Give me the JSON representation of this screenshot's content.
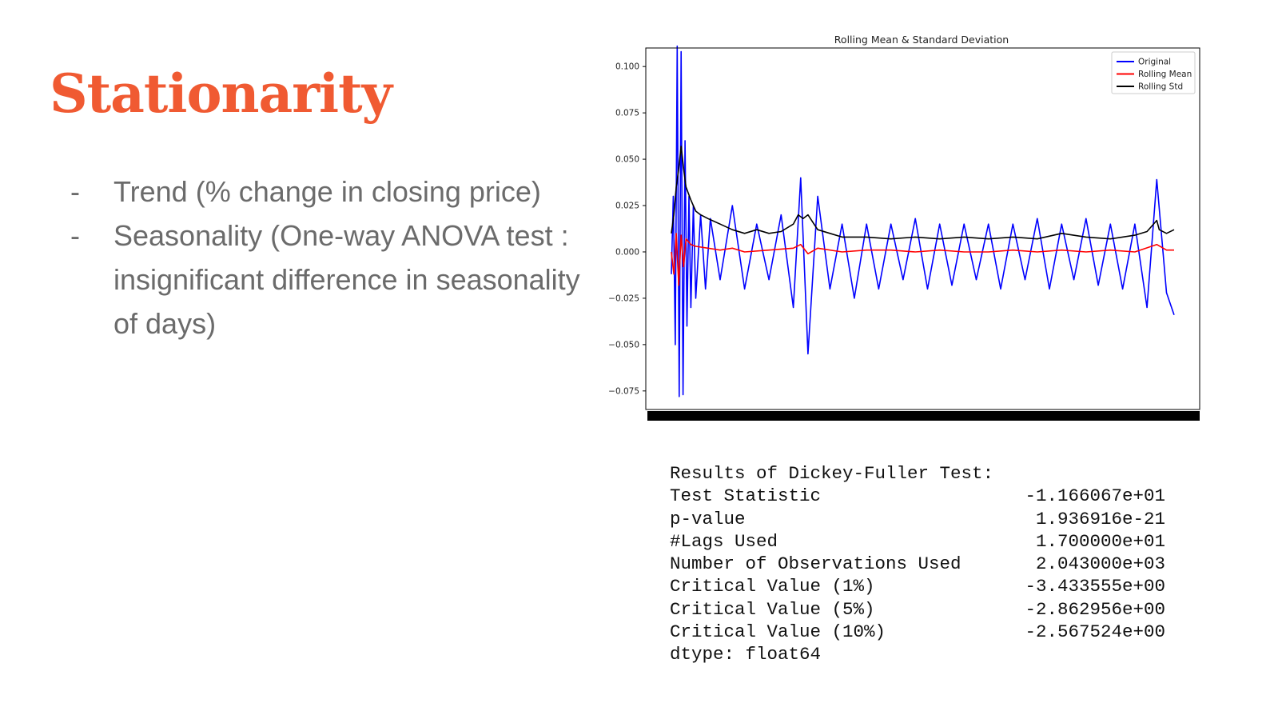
{
  "slide": {
    "title": "Stationarity",
    "bullet_marker": "-",
    "bullets": [
      "Trend (% change in closing price)",
      "Seasonality (One-way ANOVA test : insignificant difference in seasonality of days)"
    ]
  },
  "colors": {
    "title": "#f05a32",
    "bullet_text": "#6b6b6b",
    "original": "#0000ff",
    "rolling_mean": "#ff0000",
    "rolling_std": "#000000"
  },
  "chart_data": {
    "type": "line",
    "title": "Rolling Mean & Standard Deviation",
    "xlabel": "",
    "ylabel": "",
    "ylim": [
      -0.085,
      0.11
    ],
    "yticks": [
      -0.075,
      -0.05,
      -0.025,
      0.0,
      0.025,
      0.05,
      0.075,
      0.1
    ],
    "ytick_labels": [
      "−0.075",
      "−0.050",
      "−0.025",
      "0.000",
      "0.025",
      "0.050",
      "0.075",
      "0.100"
    ],
    "x_range": [
      0,
      2061
    ],
    "xtick_labels_note": "overlapping illegible x tick labels",
    "legend": {
      "location": "upper right",
      "entries": [
        "Original",
        "Rolling Mean",
        "Rolling Std"
      ]
    },
    "grid": false,
    "series": [
      {
        "name": "Original",
        "color": "#0000ff",
        "x": [
          0,
          8,
          16,
          24,
          32,
          40,
          48,
          56,
          64,
          72,
          80,
          90,
          100,
          120,
          140,
          160,
          200,
          250,
          300,
          350,
          400,
          450,
          500,
          530,
          560,
          600,
          650,
          700,
          750,
          800,
          850,
          900,
          950,
          1000,
          1050,
          1100,
          1150,
          1200,
          1250,
          1300,
          1350,
          1400,
          1450,
          1500,
          1550,
          1600,
          1650,
          1700,
          1750,
          1800,
          1850,
          1900,
          1950,
          1990,
          2030,
          2061
        ],
        "y": [
          -0.012,
          0.03,
          -0.05,
          0.111,
          -0.078,
          0.108,
          -0.077,
          0.06,
          -0.04,
          0.03,
          -0.03,
          0.025,
          -0.025,
          0.02,
          -0.02,
          0.018,
          -0.015,
          0.025,
          -0.02,
          0.015,
          -0.015,
          0.02,
          -0.03,
          0.04,
          -0.055,
          0.03,
          -0.02,
          0.015,
          -0.025,
          0.015,
          -0.02,
          0.015,
          -0.015,
          0.018,
          -0.02,
          0.015,
          -0.018,
          0.015,
          -0.015,
          0.015,
          -0.02,
          0.015,
          -0.015,
          0.018,
          -0.02,
          0.015,
          -0.015,
          0.018,
          -0.018,
          0.015,
          -0.02,
          0.015,
          -0.03,
          0.039,
          -0.022,
          -0.034
        ]
      },
      {
        "name": "Rolling Mean",
        "color": "#ff0000",
        "x": [
          0,
          10,
          20,
          30,
          40,
          50,
          60,
          80,
          100,
          150,
          200,
          250,
          300,
          400,
          500,
          530,
          560,
          600,
          700,
          800,
          900,
          1000,
          1100,
          1200,
          1300,
          1400,
          1500,
          1600,
          1700,
          1800,
          1900,
          1990,
          2030,
          2061
        ],
        "y": [
          0.0,
          -0.012,
          0.01,
          -0.018,
          0.009,
          -0.008,
          0.007,
          0.004,
          0.003,
          0.002,
          0.001,
          0.002,
          0.0,
          0.001,
          0.002,
          0.004,
          -0.001,
          0.002,
          0.0,
          0.001,
          0.001,
          0.0,
          0.001,
          0.0,
          0.0,
          0.001,
          0.0,
          0.001,
          0.0,
          0.001,
          0.0,
          0.004,
          0.001,
          0.001
        ]
      },
      {
        "name": "Rolling Std",
        "color": "#000000",
        "x": [
          0,
          10,
          20,
          30,
          40,
          50,
          60,
          80,
          100,
          120,
          150,
          200,
          250,
          300,
          350,
          400,
          450,
          500,
          520,
          540,
          560,
          600,
          650,
          700,
          800,
          900,
          1000,
          1100,
          1200,
          1300,
          1400,
          1500,
          1600,
          1700,
          1800,
          1900,
          1950,
          1990,
          2000,
          2030,
          2061
        ],
        "y": [
          0.01,
          0.02,
          0.035,
          0.045,
          0.057,
          0.045,
          0.035,
          0.028,
          0.022,
          0.02,
          0.018,
          0.015,
          0.012,
          0.01,
          0.012,
          0.01,
          0.011,
          0.015,
          0.02,
          0.018,
          0.02,
          0.012,
          0.01,
          0.008,
          0.008,
          0.007,
          0.008,
          0.007,
          0.008,
          0.007,
          0.008,
          0.007,
          0.01,
          0.008,
          0.007,
          0.009,
          0.011,
          0.017,
          0.012,
          0.01,
          0.012
        ]
      }
    ]
  },
  "adf": {
    "header": "Results of Dickey-Fuller Test:",
    "rows": [
      {
        "label": "Test Statistic",
        "value": "-1.166067e+01"
      },
      {
        "label": "p-value",
        "value": "1.936916e-21"
      },
      {
        "label": "#Lags Used",
        "value": "1.700000e+01"
      },
      {
        "label": "Number of Observations Used",
        "value": "2.043000e+03"
      },
      {
        "label": "Critical Value (1%)",
        "value": "-3.433555e+00"
      },
      {
        "label": "Critical Value (5%)",
        "value": "-2.862956e+00"
      },
      {
        "label": "Critical Value (10%)",
        "value": "-2.567524e+00"
      }
    ],
    "footer": "dtype: float64"
  }
}
